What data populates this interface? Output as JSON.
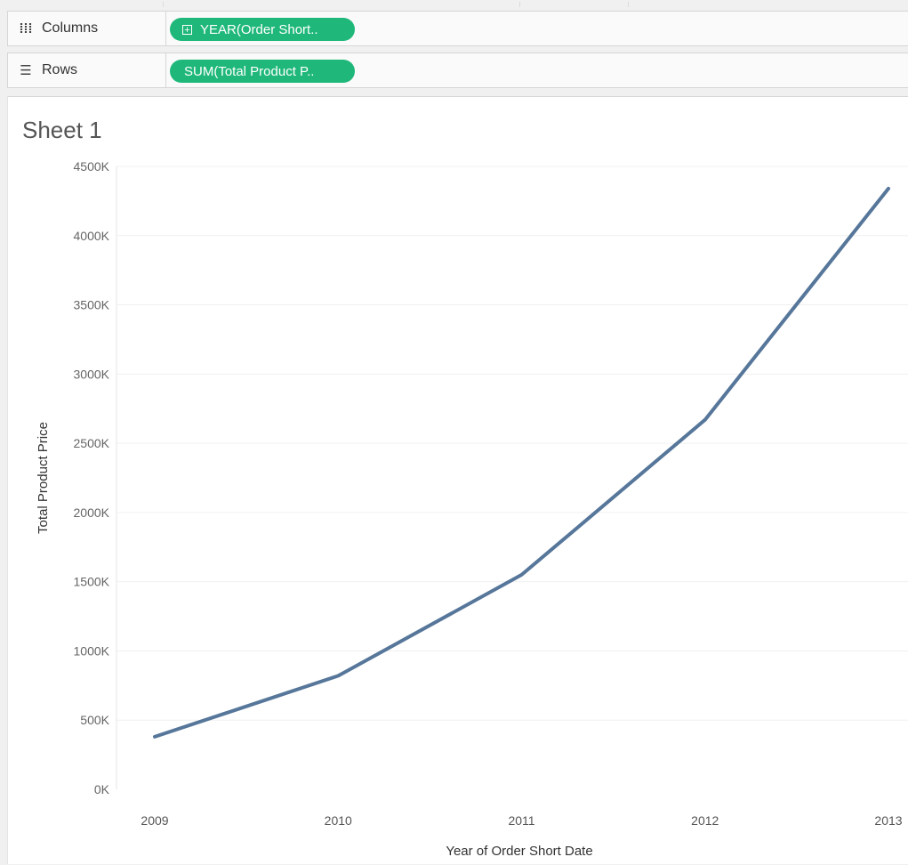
{
  "shelves": {
    "columns": {
      "label": "Columns",
      "pill": "YEAR(Order Short.."
    },
    "rows": {
      "label": "Rows",
      "pill": "SUM(Total Product P.."
    }
  },
  "sheet": {
    "title": "Sheet 1"
  },
  "colors": {
    "pill": "#1fb87a",
    "line": "#56769a",
    "grid": "#f0f0f0"
  },
  "chart_data": {
    "type": "line",
    "x": [
      "2009",
      "2010",
      "2011",
      "2012",
      "2013"
    ],
    "series": [
      {
        "values": [
          380000,
          820000,
          1550000,
          2670000,
          4340000
        ]
      }
    ],
    "xlabel": "Year of Order Short Date",
    "ylabel": "Total Product Price",
    "yticks": [
      "0K",
      "500K",
      "1000K",
      "1500K",
      "2000K",
      "2500K",
      "3000K",
      "3500K",
      "4000K",
      "4500K"
    ],
    "ylim": [
      0,
      4500000
    ],
    "grid": true
  }
}
